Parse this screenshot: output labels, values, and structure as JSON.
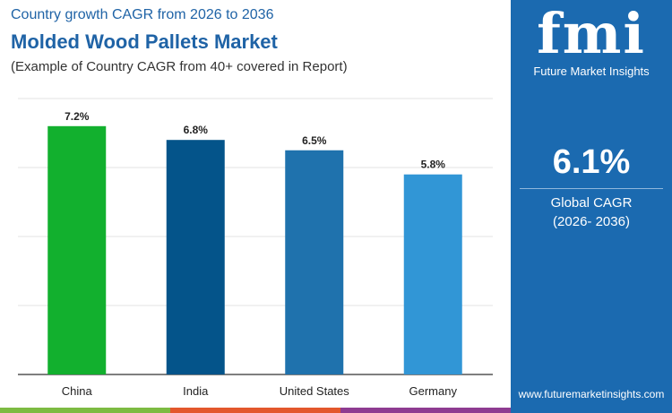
{
  "header": {
    "subtitle_top": "Country growth CAGR from 2026 to 2036",
    "title": "Molded Wood Pallets Market",
    "note": "(Example of Country CAGR from 40+ covered in Report)"
  },
  "sidebar": {
    "logo_text": "fmi",
    "brand": "Future Market Insights",
    "global_value": "6.1%",
    "global_label": "Global CAGR",
    "global_period": "(2026- 2036)",
    "url": "www.futuremarketinsights.com",
    "bg_color": "#1b6ab0"
  },
  "chart_data": {
    "type": "bar",
    "categories": [
      "China",
      "India",
      "United States",
      "Germany"
    ],
    "values": [
      7.2,
      6.8,
      6.5,
      5.8
    ],
    "labels": [
      "7.2%",
      "6.8%",
      "6.5%",
      "5.8%"
    ],
    "colors": [
      "#12b02e",
      "#04548a",
      "#1f72ad",
      "#3196d6"
    ],
    "ylim": [
      0,
      8
    ],
    "grid": true,
    "title": "",
    "xlabel": "",
    "ylabel": ""
  },
  "stripe_colors": [
    "#7dbb42",
    "#e3572c",
    "#8e3b91"
  ]
}
